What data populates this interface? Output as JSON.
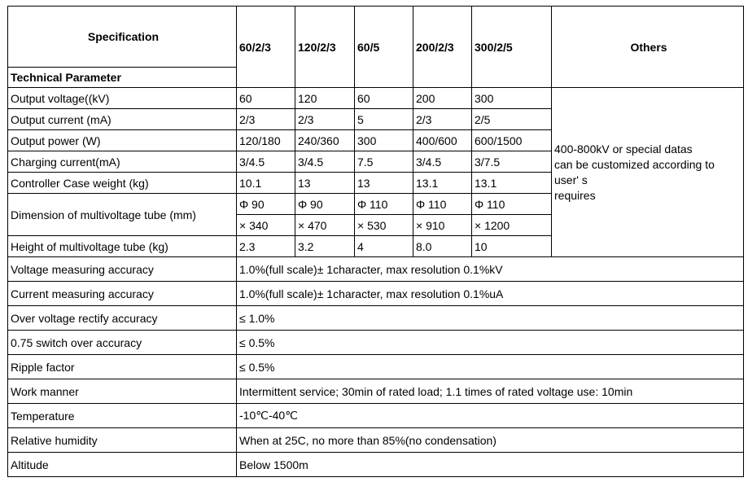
{
  "header": {
    "spec": "Specification",
    "tech": "Technical Parameter",
    "models": [
      "60/2/3",
      "120/2/3",
      "60/5",
      "200/2/3",
      "300/2/5"
    ],
    "others": "Others"
  },
  "others_note": [
    "400-800kV  or special datas",
    "can be customized according  to",
    "user' s",
    "requires"
  ],
  "rows": [
    {
      "label": "Output  voltage((kV)",
      "values": [
        "60",
        "120",
        "60",
        "200",
        "300"
      ]
    },
    {
      "label": "Output  current  (mA)",
      "values": [
        "2/3",
        "2/3",
        "5",
        "2/3",
        "2/5"
      ]
    },
    {
      "label": "Output  power  (W)",
      "values": [
        "120/180",
        "240/360",
        "300",
        "400/600",
        "600/1500"
      ]
    },
    {
      "label": "Charging current(mA)",
      "values": [
        "3/4.5",
        "3/4.5",
        "7.5",
        "3/4.5",
        "3/7.5"
      ]
    },
    {
      "label": "Controller  Case  weight  (kg)",
      "values": [
        "10.1",
        "13",
        "13",
        "13.1",
        "13.1"
      ]
    }
  ],
  "dimension": {
    "label": "Dimension  of  multivoltage  tube  (mm)",
    "diameter": [
      "Φ 90",
      "Φ 90",
      "Φ 110",
      "Φ 110",
      "Φ 110"
    ],
    "length": [
      "× 340",
      "× 470",
      "× 530",
      "× 910",
      "× 1200"
    ]
  },
  "height": {
    "label": "Height  of  multivoltage  tube  (kg)",
    "values": [
      "2.3",
      "3.2",
      "4",
      "8.0",
      "10"
    ]
  },
  "common": [
    {
      "label": "Voltage  measuring  accuracy",
      "value": "1.0%(full  scale)± 1character,   max  resolution  0.1%kV"
    },
    {
      "label": "Current  measuring  accuracy",
      "value": "1.0%(full  scale)± 1character,   max  resolution  0.1%uA"
    },
    {
      "label": "Over  voltage  rectify  accuracy",
      "value": "≤ 1.0%"
    },
    {
      "label": "0.75  switch  over  accuracy",
      "value": "≤ 0.5%"
    },
    {
      "label": "Ripple  factor",
      "value": "≤ 0.5%"
    },
    {
      "label": "Work  manner",
      "value": "Intermittent  service;   30min  of  rated  load;  1.1  times  of  rated  voltage  use:  10min"
    },
    {
      "label": "Temperature",
      "value": "-10℃-40℃"
    },
    {
      "label": "Relative  humidity",
      "value": "When  at  25C,  no  more  than  85%(no  condensation)"
    },
    {
      "label": "Altitude",
      "value": "Below  1500m"
    }
  ]
}
